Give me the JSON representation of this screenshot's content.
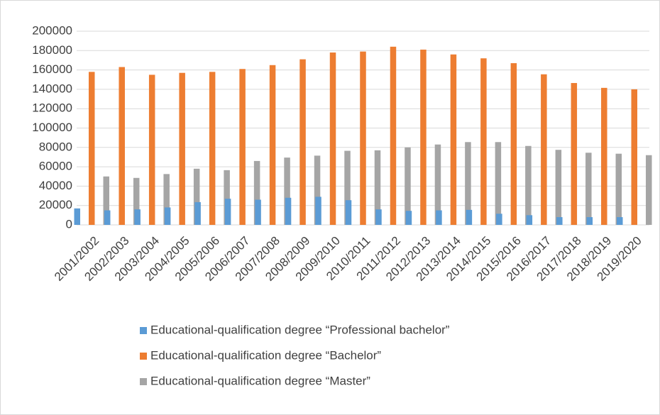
{
  "chart_data": {
    "type": "bar",
    "categories": [
      "2001/2002",
      "2002/2003",
      "2003/2004",
      "2004/2005",
      "2005/2006",
      "2006/2007",
      "2007/2008",
      "2008/2009",
      "2009/2010",
      "2010/2011",
      "2011/2012",
      "2012/2013",
      "2013/2014",
      "2014/2015",
      "2015/2016",
      "2016/2017",
      "2017/2018",
      "2018/2019",
      "2019/2020"
    ],
    "series": [
      {
        "name": "Educational-qualification degree “Professional bachelor”",
        "color": "#5b9bd5",
        "values": [
          17000,
          15000,
          16000,
          18000,
          23500,
          27000,
          26000,
          28000,
          29000,
          25500,
          16000,
          14500,
          15000,
          15500,
          11500,
          10000,
          8000,
          8000,
          8000
        ]
      },
      {
        "name": "Educational-qualification degree “Bachelor”",
        "color": "#ed7d31",
        "values": [
          158000,
          163000,
          155000,
          157000,
          158000,
          161000,
          165000,
          171000,
          178000,
          179000,
          184000,
          181000,
          176000,
          172000,
          167000,
          155500,
          146500,
          141500,
          140000
        ]
      },
      {
        "name": "Educational-qualification degree “Master”",
        "color": "#a5a5a5",
        "values": [
          50000,
          48500,
          52500,
          58000,
          56500,
          66000,
          69500,
          71500,
          76500,
          77000,
          80000,
          83000,
          85500,
          85500,
          81500,
          77500,
          74500,
          73500,
          72000
        ]
      }
    ],
    "ylim": [
      0,
      200000
    ],
    "yticks": [
      0,
      20000,
      40000,
      60000,
      80000,
      100000,
      120000,
      140000,
      160000,
      180000,
      200000
    ],
    "grid": true
  }
}
